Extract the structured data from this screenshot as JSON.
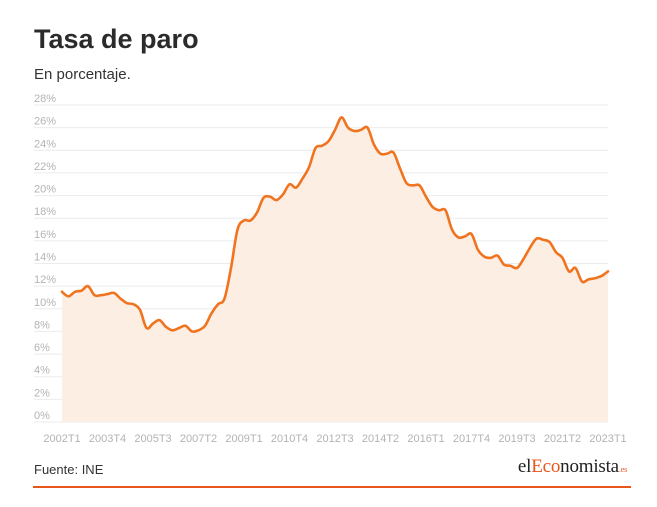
{
  "header": {
    "title": "Tasa de paro",
    "subtitle": "En porcentaje."
  },
  "footer": {
    "source": "Fuente: INE",
    "logo": {
      "prefix": "el",
      "highlight": "Eco",
      "rest": "nomista",
      "tld": ".es"
    }
  },
  "colors": {
    "line": "#f07420",
    "area": "#fdeee4",
    "grid": "#ebebeb",
    "brand": "#e8561b"
  },
  "chart_data": {
    "type": "area",
    "title": "Tasa de paro",
    "subtitle": "En porcentaje.",
    "xlabel": "",
    "ylabel": "",
    "ylim": [
      0,
      28
    ],
    "yticks": [
      0,
      2,
      4,
      6,
      8,
      10,
      12,
      14,
      16,
      18,
      20,
      22,
      24,
      26,
      28
    ],
    "ytick_labels": [
      "0%",
      "2%",
      "4%",
      "6%",
      "8%",
      "10%",
      "12%",
      "14%",
      "16%",
      "18%",
      "20%",
      "22%",
      "24%",
      "26%",
      "28%"
    ],
    "xtick_labels": [
      "2002T1",
      "2003T4",
      "2005T3",
      "2007T2",
      "2009T1",
      "2010T4",
      "2012T3",
      "2014T2",
      "2016T1",
      "2017T4",
      "2019T3",
      "2021T2",
      "2023T1"
    ],
    "xtick_index": [
      0,
      7,
      14,
      21,
      28,
      35,
      42,
      49,
      56,
      63,
      70,
      77,
      84
    ],
    "grid": true,
    "series": [
      {
        "name": "Tasa de paro",
        "x": [
          "2002T1",
          "2002T2",
          "2002T3",
          "2002T4",
          "2003T1",
          "2003T2",
          "2003T3",
          "2003T4",
          "2004T1",
          "2004T2",
          "2004T3",
          "2004T4",
          "2005T1",
          "2005T2",
          "2005T3",
          "2005T4",
          "2006T1",
          "2006T2",
          "2006T3",
          "2006T4",
          "2007T1",
          "2007T2",
          "2007T3",
          "2007T4",
          "2008T1",
          "2008T2",
          "2008T3",
          "2008T4",
          "2009T1",
          "2009T2",
          "2009T3",
          "2009T4",
          "2010T1",
          "2010T2",
          "2010T3",
          "2010T4",
          "2011T1",
          "2011T2",
          "2011T3",
          "2011T4",
          "2012T1",
          "2012T2",
          "2012T3",
          "2012T4",
          "2013T1",
          "2013T2",
          "2013T3",
          "2013T4",
          "2014T1",
          "2014T2",
          "2014T3",
          "2014T4",
          "2015T1",
          "2015T2",
          "2015T3",
          "2015T4",
          "2016T1",
          "2016T2",
          "2016T3",
          "2016T4",
          "2017T1",
          "2017T2",
          "2017T3",
          "2017T4",
          "2018T1",
          "2018T2",
          "2018T3",
          "2018T4",
          "2019T1",
          "2019T2",
          "2019T3",
          "2019T4",
          "2020T1",
          "2020T2",
          "2020T3",
          "2020T4",
          "2021T1",
          "2021T2",
          "2021T3",
          "2021T4",
          "2022T1",
          "2022T2",
          "2022T3",
          "2022T4",
          "2023T1"
        ],
        "values": [
          11.5,
          11.1,
          11.5,
          11.6,
          12.0,
          11.2,
          11.2,
          11.3,
          11.4,
          10.9,
          10.5,
          10.4,
          9.9,
          8.3,
          8.7,
          9.0,
          8.4,
          8.1,
          8.3,
          8.5,
          8.0,
          8.1,
          8.5,
          9.6,
          10.4,
          10.9,
          13.6,
          17.0,
          17.8,
          17.8,
          18.5,
          19.8,
          19.9,
          19.6,
          20.1,
          21.0,
          20.7,
          21.5,
          22.5,
          24.2,
          24.4,
          24.8,
          25.8,
          26.9,
          26.0,
          25.7,
          25.8,
          26.0,
          24.5,
          23.7,
          23.7,
          23.8,
          22.4,
          21.1,
          20.9,
          20.9,
          19.9,
          19.0,
          18.7,
          18.7,
          17.0,
          16.3,
          16.4,
          16.6,
          15.2,
          14.6,
          14.5,
          14.7,
          13.9,
          13.8,
          13.6,
          14.4,
          15.4,
          16.2,
          16.1,
          15.9,
          15.0,
          14.5,
          13.3,
          13.6,
          12.4,
          12.6,
          12.7,
          12.9,
          13.3
        ]
      }
    ]
  }
}
